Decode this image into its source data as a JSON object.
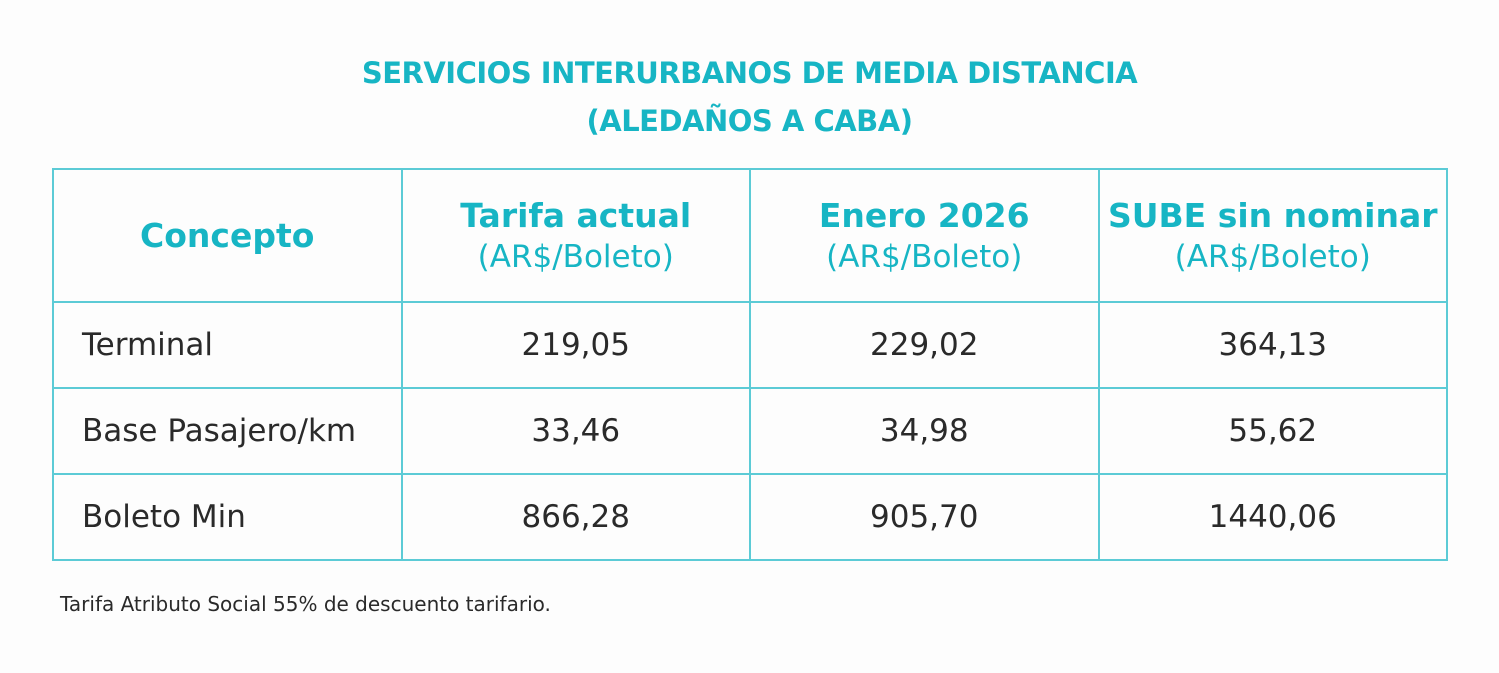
{
  "title": {
    "line1": "SERVICIOS INTERURBANOS DE MEDIA DISTANCIA",
    "line2": "(ALEDAÑOS A CABA)"
  },
  "table": {
    "headers": [
      {
        "label": "Concepto",
        "unit": ""
      },
      {
        "label": "Tarifa actual",
        "unit": "(AR$/Boleto)"
      },
      {
        "label": "Enero 2026",
        "unit": "(AR$/Boleto)"
      },
      {
        "label": "SUBE sin nominar",
        "unit": "(AR$/Boleto)"
      }
    ],
    "rows": [
      [
        "Terminal",
        "219,05",
        "229,02",
        "364,13"
      ],
      [
        "Base Pasajero/km",
        "33,46",
        "34,98",
        "55,62"
      ],
      [
        "Boleto Min",
        "866,28",
        "905,70",
        "1440,06"
      ]
    ]
  },
  "footnote": "Tarifa Atributo Social 55% de descuento tarifario.",
  "colors": {
    "accent": "#17b5c4",
    "border": "#5ccbd6"
  }
}
